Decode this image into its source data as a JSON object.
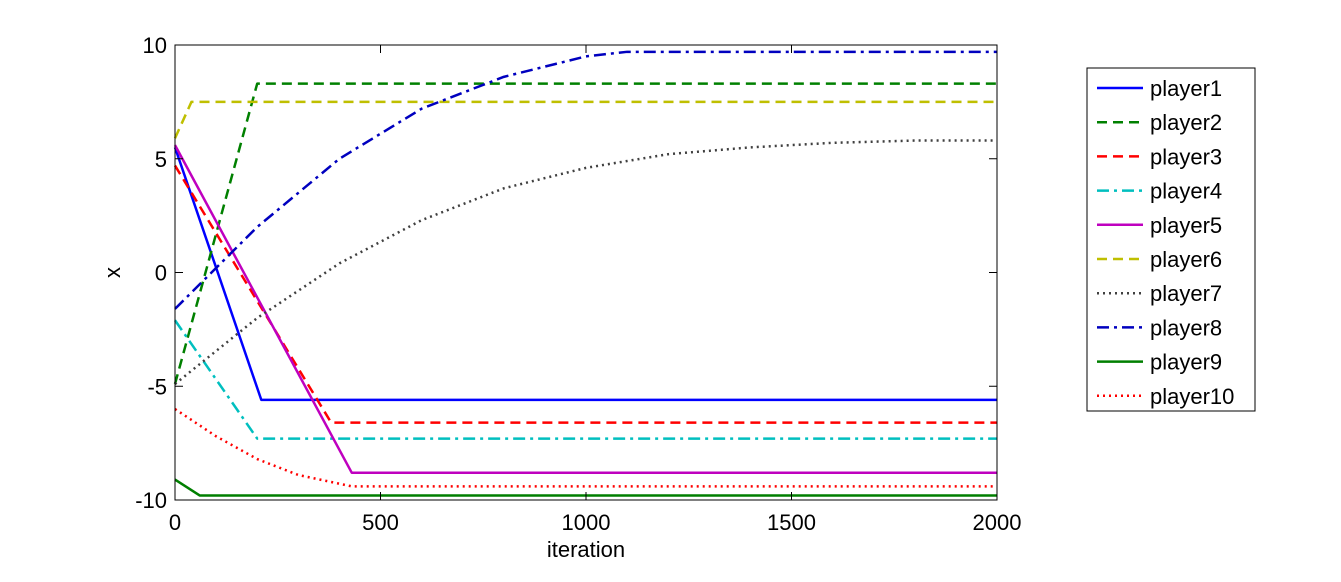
{
  "chart_data": {
    "type": "line",
    "title": "",
    "xlabel": "iteration",
    "ylabel": "x",
    "xlim": [
      0,
      2000
    ],
    "ylim": [
      -10,
      10
    ],
    "xticks": [
      0,
      500,
      1000,
      1500,
      2000
    ],
    "yticks": [
      -10,
      -5,
      0,
      5,
      10
    ],
    "xtick_labels": [
      "0",
      "500",
      "1000",
      "1500",
      "2000"
    ],
    "ytick_labels": [
      "-10",
      "-5",
      "0",
      "5",
      "10"
    ],
    "grid": false,
    "legend_position": "right",
    "series": [
      {
        "name": "player1",
        "color": "#0000ff",
        "style": "solid",
        "x": [
          0,
          210,
          2000
        ],
        "y": [
          5.5,
          -5.6,
          -5.6
        ]
      },
      {
        "name": "player2",
        "color": "#008000",
        "style": "dashed",
        "x": [
          0,
          200,
          2000
        ],
        "y": [
          -4.9,
          8.3,
          8.3
        ]
      },
      {
        "name": "player3",
        "color": "#ff0000",
        "style": "dashed",
        "x": [
          0,
          380,
          2000
        ],
        "y": [
          4.7,
          -6.6,
          -6.6
        ]
      },
      {
        "name": "player4",
        "color": "#00bfbf",
        "style": "dashdot",
        "x": [
          0,
          200,
          2000
        ],
        "y": [
          -2.1,
          -7.3,
          -7.3
        ]
      },
      {
        "name": "player5",
        "color": "#bf00bf",
        "style": "solid",
        "x": [
          0,
          430,
          2000
        ],
        "y": [
          5.6,
          -8.8,
          -8.8
        ]
      },
      {
        "name": "player6",
        "color": "#bfbf00",
        "style": "dashed",
        "x": [
          0,
          40,
          2000
        ],
        "y": [
          5.9,
          7.5,
          7.5
        ]
      },
      {
        "name": "player7",
        "color": "#404040",
        "style": "dotted",
        "x": [
          0,
          200,
          400,
          600,
          800,
          1000,
          1200,
          1400,
          1600,
          1800,
          2000
        ],
        "y": [
          -4.9,
          -2.0,
          0.4,
          2.3,
          3.7,
          4.6,
          5.2,
          5.5,
          5.7,
          5.8,
          5.8
        ]
      },
      {
        "name": "player8",
        "color": "#0000bf",
        "style": "dashdot",
        "x": [
          0,
          200,
          400,
          600,
          800,
          1000,
          1100,
          2000
        ],
        "y": [
          -1.6,
          2.0,
          5.0,
          7.2,
          8.6,
          9.5,
          9.7,
          9.7
        ]
      },
      {
        "name": "player9",
        "color": "#007f00",
        "style": "solid",
        "x": [
          0,
          60,
          2000
        ],
        "y": [
          -9.1,
          -9.8,
          -9.8
        ]
      },
      {
        "name": "player10",
        "color": "#ff0000",
        "style": "dotted",
        "x": [
          0,
          100,
          200,
          300,
          430,
          2000
        ],
        "y": [
          -6.0,
          -7.2,
          -8.2,
          -8.9,
          -9.4,
          -9.4
        ]
      }
    ]
  }
}
